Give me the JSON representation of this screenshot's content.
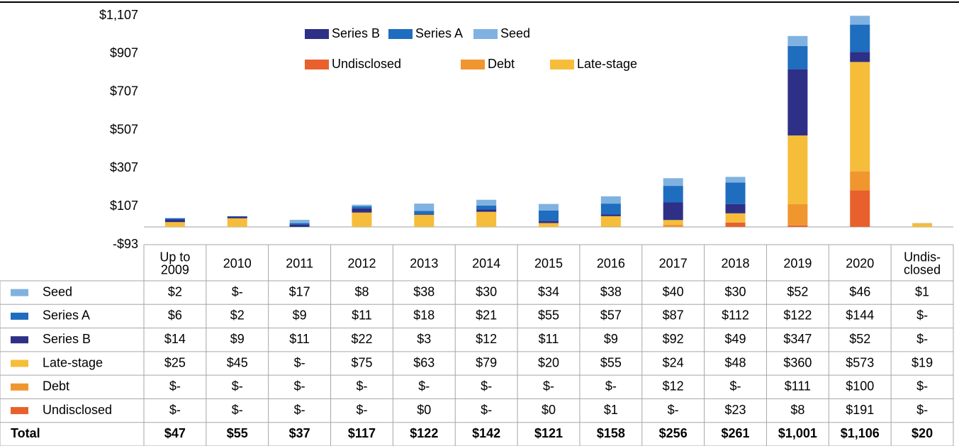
{
  "chart_data": {
    "type": "stacked-bar",
    "categories": [
      "Up to\n2009",
      "2010",
      "2011",
      "2012",
      "2013",
      "2014",
      "2015",
      "2016",
      "2017",
      "2018",
      "2019",
      "2020",
      "Undis-\nclosed"
    ],
    "series": [
      {
        "name": "Seed",
        "color": "#7fb2e0",
        "values": [
          2,
          0,
          17,
          8,
          38,
          30,
          34,
          38,
          40,
          30,
          52,
          46,
          1
        ],
        "value_labels": [
          "$2",
          "$-",
          "$17",
          "$8",
          "$38",
          "$30",
          "$34",
          "$38",
          "$40",
          "$30",
          "$52",
          "$46",
          "$1"
        ]
      },
      {
        "name": "Series A",
        "color": "#1f6dbf",
        "values": [
          6,
          2,
          9,
          11,
          18,
          21,
          55,
          57,
          87,
          112,
          122,
          144,
          0
        ],
        "value_labels": [
          "$6",
          "$2",
          "$9",
          "$11",
          "$18",
          "$21",
          "$55",
          "$57",
          "$87",
          "$112",
          "$122",
          "$144",
          "$-"
        ]
      },
      {
        "name": "Series B",
        "color": "#2e2f86",
        "values": [
          14,
          9,
          11,
          22,
          3,
          12,
          11,
          9,
          92,
          49,
          347,
          52,
          0
        ],
        "value_labels": [
          "$14",
          "$9",
          "$11",
          "$22",
          "$3",
          "$12",
          "$11",
          "$9",
          "$92",
          "$49",
          "$347",
          "$52",
          "$-"
        ]
      },
      {
        "name": "Late-stage",
        "color": "#f5bd3a",
        "values": [
          25,
          45,
          0,
          75,
          63,
          79,
          20,
          55,
          24,
          48,
          360,
          573,
          19
        ],
        "value_labels": [
          "$25",
          "$45",
          "$-",
          "$75",
          "$63",
          "$79",
          "$20",
          "$55",
          "$24",
          "$48",
          "$360",
          "$573",
          "$19"
        ]
      },
      {
        "name": "Debt",
        "color": "#f0962f",
        "values": [
          0,
          0,
          0,
          0,
          0,
          0,
          0,
          0,
          12,
          0,
          111,
          100,
          0
        ],
        "value_labels": [
          "$-",
          "$-",
          "$-",
          "$-",
          "$-",
          "$-",
          "$-",
          "$-",
          "$12",
          "$-",
          "$111",
          "$100",
          "$-"
        ]
      },
      {
        "name": "Undisclosed",
        "color": "#e8612c",
        "values": [
          0,
          0,
          0,
          0,
          0,
          0,
          0,
          1,
          0,
          23,
          8,
          191,
          0
        ],
        "value_labels": [
          "$-",
          "$-",
          "$-",
          "$-",
          "$0",
          "$-",
          "$0",
          "$1",
          "$-",
          "$23",
          "$8",
          "$191",
          "$-"
        ]
      }
    ],
    "totals": {
      "name": "Total",
      "values": [
        47,
        55,
        37,
        117,
        122,
        142,
        121,
        158,
        256,
        261,
        1001,
        1106,
        20
      ],
      "value_labels": [
        "$47",
        "$55",
        "$37",
        "$117",
        "$122",
        "$142",
        "$121",
        "$158",
        "$256",
        "$261",
        "$1,001",
        "$1,106",
        "$20"
      ]
    },
    "ylim": [
      -93,
      1107
    ],
    "yticks": [
      {
        "value": -93,
        "label": "-$93"
      },
      {
        "value": 107,
        "label": "$107"
      },
      {
        "value": 307,
        "label": "$307"
      },
      {
        "value": 507,
        "label": "$507"
      },
      {
        "value": 707,
        "label": "$707"
      },
      {
        "value": 907,
        "label": "$907"
      },
      {
        "value": 1107,
        "label": "$1,107"
      }
    ],
    "grid": false
  }
}
